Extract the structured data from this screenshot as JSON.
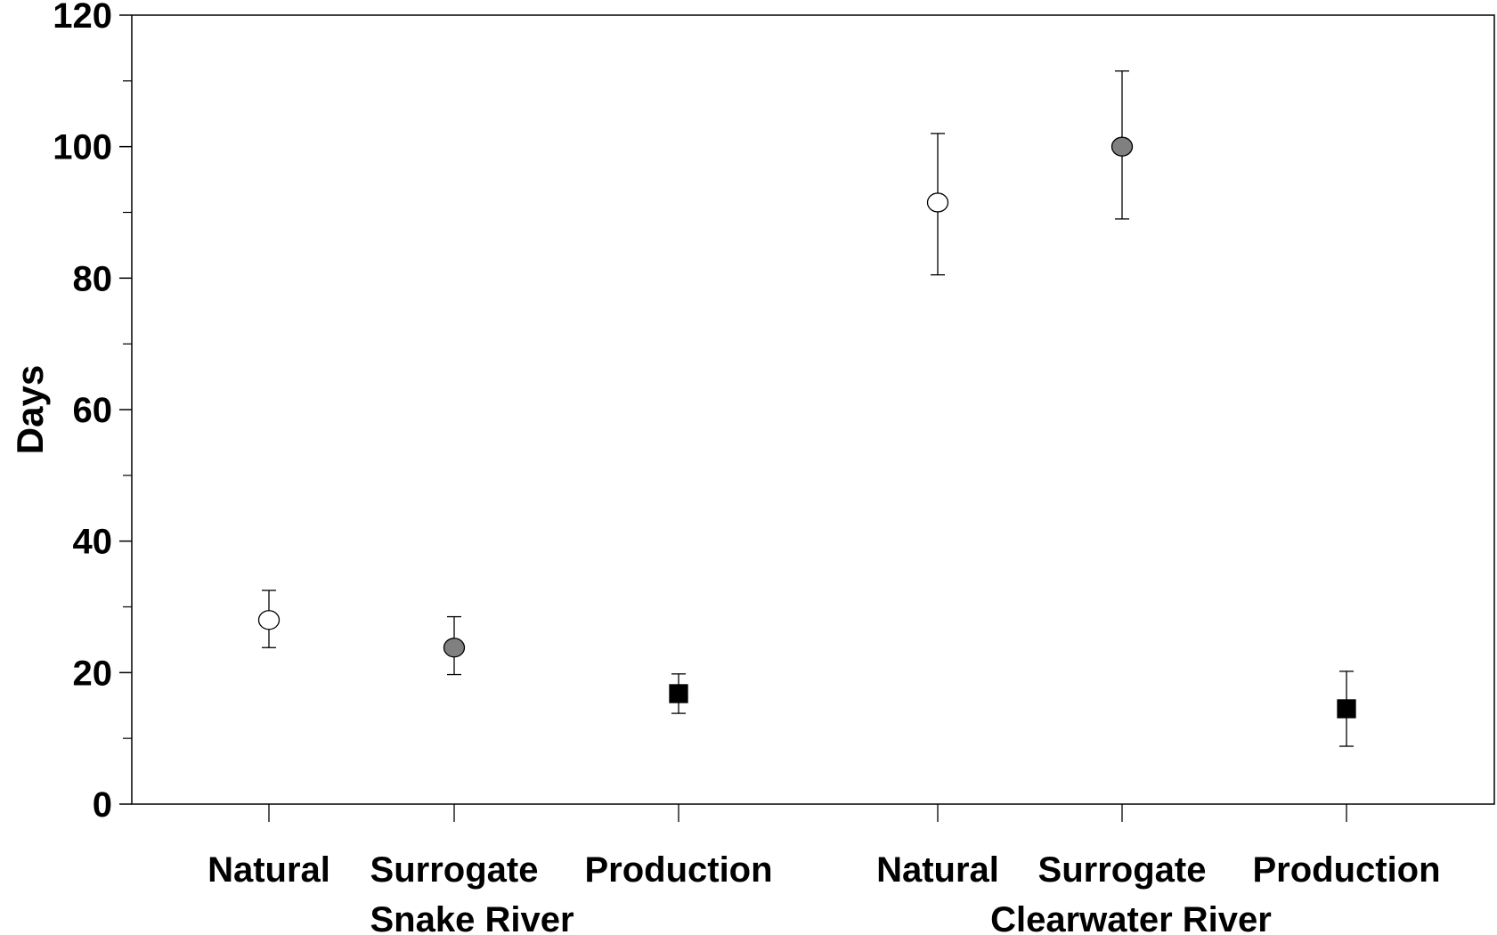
{
  "chart_data": {
    "type": "scatter",
    "ylabel": "Days",
    "xlabel": "",
    "ylim": [
      0,
      120
    ],
    "yticks": [
      "0",
      "20",
      "40",
      "60",
      "80",
      "100",
      "120"
    ],
    "grid": false,
    "groups": [
      {
        "label": "Snake River",
        "categories": [
          "Natural",
          "Surrogate",
          "Production"
        ]
      },
      {
        "label": "Clearwater River",
        "categories": [
          "Natural",
          "Surrogate",
          "Production"
        ]
      }
    ],
    "points": [
      {
        "group": "Snake River",
        "category": "Natural",
        "value": 28,
        "lower": 23.8,
        "upper": 32.5,
        "marker": "circle",
        "fill": "#ffffff"
      },
      {
        "group": "Snake River",
        "category": "Surrogate",
        "value": 23.8,
        "lower": 19.7,
        "upper": 28.5,
        "marker": "circle",
        "fill": "#808080"
      },
      {
        "group": "Snake River",
        "category": "Production",
        "value": 16.8,
        "lower": 13.8,
        "upper": 19.8,
        "marker": "square",
        "fill": "#000000"
      },
      {
        "group": "Clearwater River",
        "category": "Natural",
        "value": 91.5,
        "lower": 80.5,
        "upper": 102,
        "marker": "circle",
        "fill": "#ffffff"
      },
      {
        "group": "Clearwater River",
        "category": "Surrogate",
        "value": 100,
        "lower": 89,
        "upper": 111.5,
        "marker": "circle",
        "fill": "#808080"
      },
      {
        "group": "Clearwater River",
        "category": "Production",
        "value": 14.5,
        "lower": 8.8,
        "upper": 20.2,
        "marker": "square",
        "fill": "#000000"
      }
    ]
  }
}
